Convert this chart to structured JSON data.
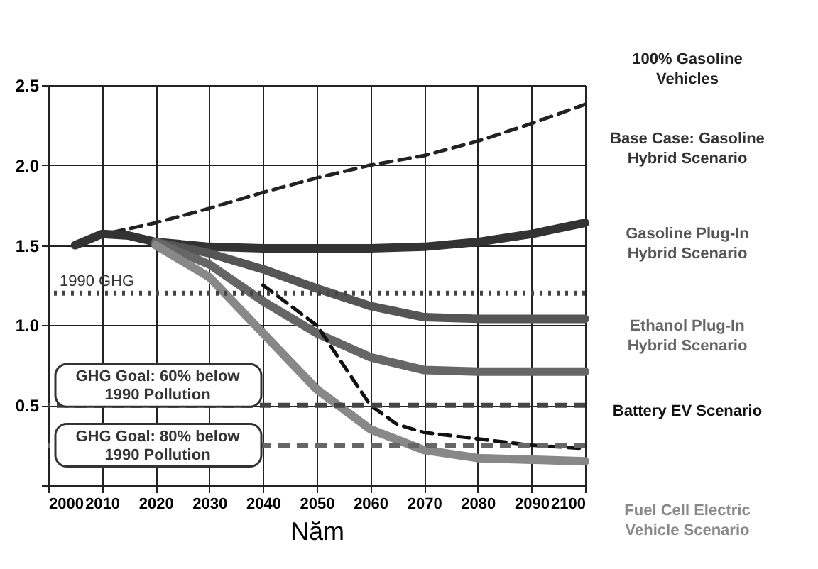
{
  "chart_data": {
    "type": "line",
    "xlabel": "Năm",
    "xlim": [
      2000,
      2100
    ],
    "xticks": [
      2000,
      2010,
      2020,
      2030,
      2040,
      2050,
      2060,
      2070,
      2080,
      2090,
      2100
    ],
    "ylim": [
      0,
      2.5
    ],
    "yticks": [
      {
        "value": 0,
        "label": null
      },
      0.5,
      {
        "value": 1,
        "label": "1.0"
      },
      1.5,
      {
        "value": 2,
        "label": "2.0"
      },
      2.5
    ],
    "grid": true,
    "legend": false,
    "marker": "none",
    "series": [
      {
        "name": "100% Gasoline Vehicles",
        "color": "#222222",
        "line_style": "dashed",
        "x": [
          2012,
          2020,
          2030,
          2040,
          2050,
          2060,
          2070,
          2080,
          2090,
          2100
        ],
        "values": [
          1.58,
          1.64,
          1.73,
          1.83,
          1.92,
          2.0,
          2.06,
          2.15,
          2.26,
          2.38
        ]
      },
      {
        "name": "Base Case: Gasoline Hybrid Scenario",
        "color": "#333333",
        "line_style": "solid",
        "x": [
          2005,
          2010,
          2015,
          2020,
          2030,
          2040,
          2050,
          2060,
          2070,
          2080,
          2090,
          2100
        ],
        "values": [
          1.5,
          1.57,
          1.56,
          1.52,
          1.49,
          1.48,
          1.48,
          1.48,
          1.49,
          1.52,
          1.57,
          1.64
        ]
      },
      {
        "name": "Gasoline Plug-In Hybrid Scenario",
        "color": "#555555",
        "line_style": "solid",
        "x": [
          2020,
          2030,
          2040,
          2050,
          2060,
          2070,
          2080,
          2090,
          2100
        ],
        "values": [
          1.52,
          1.45,
          1.35,
          1.23,
          1.12,
          1.05,
          1.04,
          1.04,
          1.04
        ]
      },
      {
        "name": "Ethanol Plug-In Hybrid Scenario",
        "color": "#666666",
        "line_style": "solid",
        "x": [
          2020,
          2030,
          2040,
          2050,
          2060,
          2070,
          2080,
          2090,
          2100
        ],
        "values": [
          1.52,
          1.38,
          1.15,
          0.95,
          0.8,
          0.72,
          0.71,
          0.71,
          0.71
        ]
      },
      {
        "name": "Battery EV Scenario",
        "color": "#111111",
        "line_style": "dashed",
        "x": [
          2040,
          2050,
          2055,
          2060,
          2065,
          2070,
          2080,
          2090,
          2100
        ],
        "values": [
          1.25,
          1.0,
          0.75,
          0.5,
          0.38,
          0.33,
          0.29,
          0.25,
          0.23
        ]
      },
      {
        "name": "Fuel Cell Electric Vehicle Scenario",
        "color": "#888888",
        "line_style": "solid",
        "x": [
          2020,
          2030,
          2040,
          2050,
          2060,
          2070,
          2080,
          2090,
          2100
        ],
        "values": [
          1.5,
          1.3,
          0.95,
          0.6,
          0.35,
          0.22,
          0.17,
          0.16,
          0.15
        ]
      }
    ],
    "ref_lines": [
      {
        "axis": "y",
        "value": 1.2,
        "label": "1990 GHG",
        "color": "#444444",
        "line_style": "dotted"
      },
      {
        "axis": "y",
        "value": 0.5,
        "color": "#444444",
        "line_style": "dashed"
      },
      {
        "axis": "y",
        "value": 0.25,
        "color": "#666666",
        "line_style": "dashed"
      }
    ],
    "annotations": [
      "GHG Goal: 60% below 1990 Pollution",
      "GHG Goal: 80% below 1990 Pollution"
    ]
  }
}
